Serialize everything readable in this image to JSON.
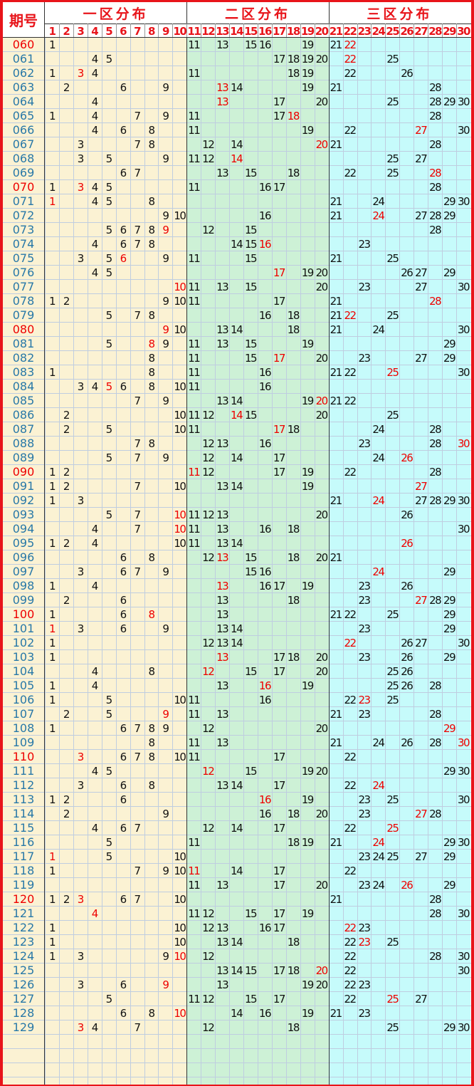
{
  "chart_data": {
    "type": "table",
    "header": {
      "issue_label": "期号",
      "zone_titles": [
        "一区分布",
        "二区分布",
        "三区分布"
      ],
      "columns": [
        "1",
        "2",
        "3",
        "4",
        "5",
        "6",
        "7",
        "8",
        "9",
        "10",
        "11",
        "12",
        "13",
        "14",
        "15",
        "16",
        "17",
        "18",
        "19",
        "20",
        "21",
        "22",
        "23",
        "24",
        "25",
        "26",
        "27",
        "28",
        "29",
        "30"
      ]
    },
    "colors": {
      "border": "#e8141a",
      "header_text": "#e8141a",
      "zone1_bg": "#fbf2d3",
      "zone2_bg": "#cdf1d6",
      "zone3_bg": "#c6fbfb",
      "grid_line": "#bfcde0",
      "number": "#111111",
      "highlight": "#ee0000",
      "issue_normal": "#2878a8",
      "issue_highlight": "#ee0000"
    },
    "rows": [
      {
        "issue": "060",
        "hl": true,
        "nums": [
          1,
          11,
          13,
          15,
          16,
          19,
          21,
          22
        ],
        "red": [
          22
        ]
      },
      {
        "issue": "061",
        "nums": [
          4,
          5,
          17,
          18,
          19,
          20,
          22,
          25
        ],
        "red": [
          22
        ]
      },
      {
        "issue": "062",
        "nums": [
          1,
          3,
          4,
          11,
          18,
          19,
          22,
          26
        ],
        "red": [
          3
        ]
      },
      {
        "issue": "063",
        "nums": [
          2,
          6,
          9,
          13,
          14,
          19,
          21,
          28
        ],
        "red": [
          13
        ]
      },
      {
        "issue": "064",
        "nums": [
          4,
          13,
          17,
          20,
          25,
          28,
          29,
          30
        ],
        "red": [
          13
        ]
      },
      {
        "issue": "065",
        "nums": [
          1,
          4,
          7,
          9,
          11,
          17,
          18,
          28
        ],
        "red": [
          18
        ]
      },
      {
        "issue": "066",
        "nums": [
          4,
          6,
          8,
          11,
          19,
          22,
          27,
          30
        ],
        "red": [
          27
        ]
      },
      {
        "issue": "067",
        "nums": [
          3,
          7,
          8,
          12,
          14,
          20,
          21,
          28
        ],
        "red": [
          20
        ]
      },
      {
        "issue": "068",
        "nums": [
          3,
          5,
          9,
          11,
          12,
          14,
          25,
          27
        ],
        "red": [
          14
        ]
      },
      {
        "issue": "069",
        "nums": [
          6,
          7,
          13,
          15,
          18,
          22,
          25,
          28
        ],
        "red": [
          28
        ]
      },
      {
        "issue": "070",
        "hl": true,
        "nums": [
          1,
          3,
          4,
          5,
          11,
          16,
          17,
          28
        ],
        "red": [
          3
        ]
      },
      {
        "issue": "071",
        "nums": [
          1,
          4,
          5,
          8,
          21,
          24,
          29,
          30
        ],
        "red": [
          1
        ]
      },
      {
        "issue": "072",
        "nums": [
          9,
          10,
          16,
          21,
          24,
          27,
          28,
          29
        ],
        "red": [
          24
        ]
      },
      {
        "issue": "073",
        "nums": [
          5,
          6,
          7,
          8,
          9,
          12,
          15,
          28
        ],
        "red": [
          9
        ]
      },
      {
        "issue": "074",
        "nums": [
          4,
          6,
          7,
          8,
          14,
          15,
          16,
          23
        ],
        "red": [
          16
        ]
      },
      {
        "issue": "075",
        "nums": [
          3,
          5,
          6,
          9,
          11,
          15,
          21,
          25
        ],
        "red": [
          6
        ]
      },
      {
        "issue": "076",
        "nums": [
          4,
          5,
          17,
          19,
          20,
          26,
          27,
          29
        ],
        "red": [
          17
        ]
      },
      {
        "issue": "077",
        "nums": [
          10,
          11,
          13,
          15,
          20,
          23,
          27,
          30
        ],
        "red": [
          10
        ]
      },
      {
        "issue": "078",
        "nums": [
          1,
          2,
          9,
          10,
          11,
          17,
          21,
          28
        ],
        "red": [
          28
        ]
      },
      {
        "issue": "079",
        "nums": [
          5,
          7,
          8,
          16,
          18,
          21,
          22,
          25
        ],
        "red": [
          22
        ]
      },
      {
        "issue": "080",
        "hl": true,
        "nums": [
          9,
          10,
          13,
          14,
          18,
          21,
          24,
          30
        ],
        "red": [
          9
        ]
      },
      {
        "issue": "081",
        "nums": [
          5,
          8,
          9,
          11,
          13,
          15,
          19,
          29
        ],
        "red": [
          8
        ]
      },
      {
        "issue": "082",
        "nums": [
          8,
          11,
          15,
          17,
          20,
          23,
          27,
          29
        ],
        "red": [
          17
        ]
      },
      {
        "issue": "083",
        "nums": [
          1,
          8,
          11,
          16,
          21,
          22,
          25,
          30
        ],
        "red": [
          25
        ]
      },
      {
        "issue": "084",
        "nums": [
          3,
          4,
          5,
          6,
          8,
          10,
          11,
          16
        ],
        "red": [
          5
        ]
      },
      {
        "issue": "085",
        "nums": [
          7,
          9,
          13,
          14,
          19,
          20,
          21,
          22
        ],
        "red": [
          20
        ]
      },
      {
        "issue": "086",
        "nums": [
          2,
          10,
          11,
          12,
          14,
          15,
          20,
          25
        ],
        "red": [
          14
        ]
      },
      {
        "issue": "087",
        "nums": [
          2,
          5,
          10,
          11,
          17,
          18,
          24,
          28
        ],
        "red": [
          17
        ]
      },
      {
        "issue": "088",
        "nums": [
          7,
          8,
          12,
          13,
          16,
          23,
          28,
          30
        ],
        "red": [
          30
        ]
      },
      {
        "issue": "089",
        "nums": [
          5,
          7,
          9,
          12,
          14,
          17,
          24,
          26
        ],
        "red": [
          26
        ]
      },
      {
        "issue": "090",
        "hl": true,
        "nums": [
          1,
          2,
          11,
          12,
          17,
          19,
          22,
          28
        ],
        "red": [
          11
        ]
      },
      {
        "issue": "091",
        "nums": [
          1,
          2,
          7,
          10,
          13,
          14,
          19,
          27
        ],
        "red": [
          27
        ]
      },
      {
        "issue": "092",
        "nums": [
          1,
          3,
          21,
          24,
          27,
          28,
          29,
          30
        ],
        "red": [
          24
        ]
      },
      {
        "issue": "093",
        "nums": [
          5,
          7,
          10,
          11,
          12,
          13,
          20,
          26
        ],
        "red": [
          10
        ]
      },
      {
        "issue": "094",
        "nums": [
          4,
          7,
          10,
          11,
          13,
          16,
          18,
          30
        ],
        "red": [
          10
        ]
      },
      {
        "issue": "095",
        "nums": [
          1,
          2,
          4,
          10,
          11,
          13,
          14,
          26
        ],
        "red": [
          26
        ]
      },
      {
        "issue": "096",
        "nums": [
          6,
          8,
          12,
          13,
          15,
          18,
          20,
          21
        ],
        "red": [
          13
        ]
      },
      {
        "issue": "097",
        "nums": [
          3,
          6,
          7,
          9,
          15,
          16,
          24,
          29
        ],
        "red": [
          24
        ]
      },
      {
        "issue": "098",
        "nums": [
          1,
          4,
          13,
          16,
          17,
          19,
          23,
          26
        ],
        "red": [
          13
        ]
      },
      {
        "issue": "099",
        "nums": [
          2,
          6,
          13,
          18,
          23,
          27,
          28,
          29
        ],
        "red": [
          27
        ]
      },
      {
        "issue": "100",
        "hl": true,
        "nums": [
          1,
          6,
          8,
          13,
          21,
          22,
          25,
          29
        ],
        "red": [
          8
        ]
      },
      {
        "issue": "101",
        "nums": [
          1,
          3,
          6,
          9,
          13,
          14,
          23,
          29
        ],
        "red": [
          1
        ]
      },
      {
        "issue": "102",
        "nums": [
          1,
          12,
          13,
          14,
          22,
          26,
          27,
          30
        ],
        "red": [
          22
        ]
      },
      {
        "issue": "103",
        "nums": [
          1,
          13,
          17,
          18,
          20,
          23,
          26,
          29
        ],
        "red": [
          13
        ]
      },
      {
        "issue": "104",
        "nums": [
          4,
          8,
          12,
          15,
          17,
          20,
          25,
          26
        ],
        "red": [
          12
        ]
      },
      {
        "issue": "105",
        "nums": [
          1,
          4,
          13,
          16,
          19,
          25,
          26,
          28
        ],
        "red": [
          16
        ]
      },
      {
        "issue": "106",
        "nums": [
          1,
          5,
          10,
          11,
          16,
          22,
          23,
          25
        ],
        "red": [
          23
        ]
      },
      {
        "issue": "107",
        "nums": [
          2,
          5,
          9,
          11,
          13,
          21,
          23,
          28
        ],
        "red": [
          9
        ]
      },
      {
        "issue": "108",
        "nums": [
          1,
          6,
          7,
          8,
          9,
          12,
          20,
          29
        ],
        "red": [
          29
        ]
      },
      {
        "issue": "109",
        "nums": [
          8,
          11,
          13,
          21,
          24,
          26,
          28,
          30
        ],
        "red": [
          30
        ]
      },
      {
        "issue": "110",
        "hl": true,
        "nums": [
          3,
          6,
          7,
          8,
          10,
          11,
          17,
          22
        ],
        "red": [
          3
        ]
      },
      {
        "issue": "111",
        "nums": [
          4,
          5,
          12,
          15,
          19,
          20,
          29,
          30
        ],
        "red": [
          12
        ]
      },
      {
        "issue": "112",
        "nums": [
          3,
          6,
          8,
          13,
          14,
          17,
          22,
          24
        ],
        "red": [
          24
        ]
      },
      {
        "issue": "113",
        "nums": [
          1,
          2,
          6,
          16,
          19,
          23,
          25,
          30
        ],
        "red": [
          16
        ]
      },
      {
        "issue": "114",
        "nums": [
          2,
          9,
          16,
          18,
          20,
          23,
          27,
          28
        ],
        "red": [
          27
        ]
      },
      {
        "issue": "115",
        "nums": [
          4,
          6,
          7,
          12,
          14,
          17,
          22,
          25
        ],
        "red": [
          25
        ]
      },
      {
        "issue": "116",
        "nums": [
          5,
          11,
          18,
          19,
          21,
          24,
          29,
          30
        ],
        "red": [
          24
        ]
      },
      {
        "issue": "117",
        "nums": [
          1,
          5,
          10,
          23,
          24,
          25,
          27,
          29
        ],
        "red": [
          1
        ]
      },
      {
        "issue": "118",
        "nums": [
          1,
          7,
          9,
          10,
          11,
          14,
          17,
          22
        ],
        "red": [
          11
        ]
      },
      {
        "issue": "119",
        "nums": [
          11,
          13,
          17,
          20,
          23,
          24,
          26,
          29
        ],
        "red": [
          26
        ]
      },
      {
        "issue": "120",
        "hl": true,
        "nums": [
          1,
          2,
          3,
          6,
          7,
          10,
          21,
          28
        ],
        "red": [
          3
        ]
      },
      {
        "issue": "121",
        "nums": [
          4,
          11,
          12,
          15,
          17,
          19,
          28,
          30
        ],
        "red": [
          4
        ]
      },
      {
        "issue": "122",
        "nums": [
          1,
          10,
          12,
          13,
          16,
          17,
          22,
          23
        ],
        "red": [
          22
        ]
      },
      {
        "issue": "123",
        "nums": [
          1,
          10,
          13,
          14,
          18,
          22,
          23,
          25
        ],
        "red": [
          23
        ]
      },
      {
        "issue": "124",
        "nums": [
          1,
          3,
          9,
          10,
          12,
          22,
          28,
          30
        ],
        "red": [
          10
        ]
      },
      {
        "issue": "125",
        "nums": [
          13,
          14,
          15,
          17,
          18,
          20,
          22,
          30
        ],
        "red": [
          20
        ]
      },
      {
        "issue": "126",
        "nums": [
          3,
          6,
          9,
          13,
          19,
          20,
          22,
          23
        ],
        "red": [
          9
        ]
      },
      {
        "issue": "127",
        "nums": [
          5,
          11,
          12,
          15,
          17,
          22,
          25,
          27
        ],
        "red": [
          25
        ]
      },
      {
        "issue": "128",
        "nums": [
          6,
          8,
          10,
          14,
          16,
          19,
          21,
          23
        ],
        "red": [
          10
        ]
      },
      {
        "issue": "129",
        "nums": [
          3,
          4,
          7,
          12,
          18,
          25,
          29,
          30
        ],
        "red": [
          3
        ]
      }
    ]
  }
}
